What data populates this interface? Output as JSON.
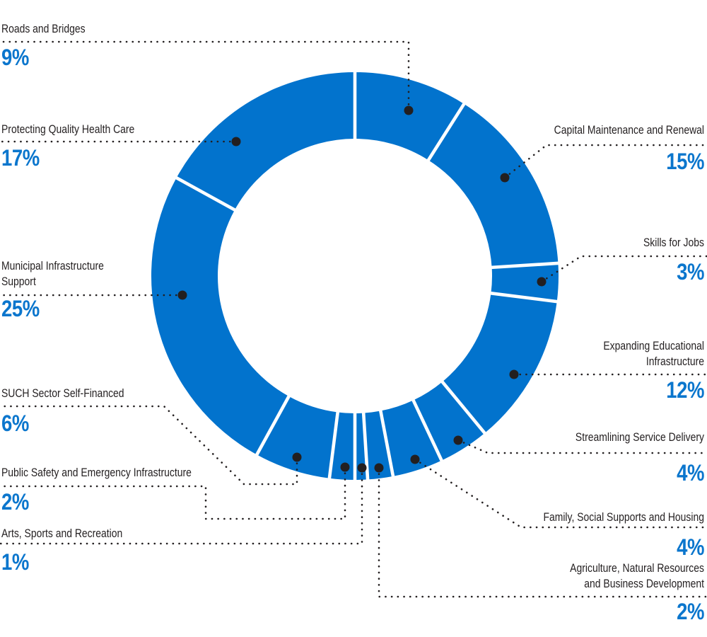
{
  "chart_data": {
    "type": "pie",
    "variant": "donut",
    "title": "",
    "unit": "%",
    "total": 100,
    "order": "clockwise-from-top",
    "segment_color": "#0273cd",
    "gap_color": "#ffffff",
    "segments": [
      {
        "label": "Roads and Bridges",
        "value": 9
      },
      {
        "label": "Capital Maintenance and Renewal",
        "value": 15
      },
      {
        "label": "Skills for Jobs",
        "value": 3
      },
      {
        "label": "Expanding Educational Infrastructure",
        "value": 12
      },
      {
        "label": "Streamlining Service Delivery",
        "value": 4
      },
      {
        "label": "Family, Social Supports and Housing",
        "value": 4
      },
      {
        "label": "Agriculture, Natural Resources and Business Development",
        "value": 2
      },
      {
        "label": "Arts, Sports and Recreation",
        "value": 1
      },
      {
        "label": "Public Safety and Emergency Infrastructure",
        "value": 2
      },
      {
        "label": "SUCH Sector Self-Financed",
        "value": 6
      },
      {
        "label": "Municipal Infrastructure Support",
        "value": 25
      },
      {
        "label": "Protecting Quality Health Care",
        "value": 17
      }
    ]
  },
  "callouts": [
    {
      "name": "Roads and Bridges",
      "pct": "9%"
    },
    {
      "name": "Capital Maintenance and Renewal",
      "pct": "15%"
    },
    {
      "name": "Skills for Jobs",
      "pct": "3%"
    },
    {
      "name": "Expanding Educational\nInfrastructure",
      "pct": "12%"
    },
    {
      "name": "Streamlining Service Delivery",
      "pct": "4%"
    },
    {
      "name": "Family, Social Supports and Housing",
      "pct": "4%"
    },
    {
      "name": "Agriculture, Natural Resources\nand Business Development",
      "pct": "2%"
    },
    {
      "name": "Arts, Sports and Recreation",
      "pct": "1%"
    },
    {
      "name": "Public Safety and Emergency Infrastructure",
      "pct": "2%"
    },
    {
      "name": "SUCH Sector Self-Financed",
      "pct": "6%"
    },
    {
      "name": "Municipal Infrastructure\nSupport",
      "pct": "25%"
    },
    {
      "name": "Protecting Quality Health Care",
      "pct": "17%"
    }
  ],
  "colors": {
    "segment_blue": "#0273cd",
    "percent_text_blue": "#0b76cd",
    "label_text_black": "#231f20",
    "leader_line_black": "#231f20",
    "background": "#ffffff"
  }
}
